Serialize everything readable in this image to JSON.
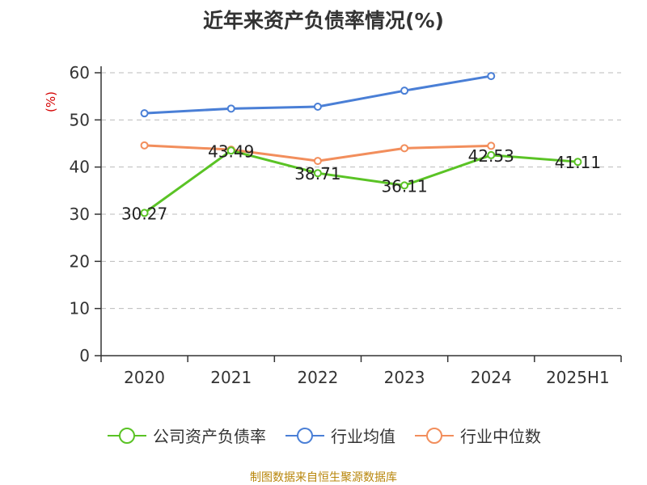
{
  "chart_data": {
    "type": "line",
    "title": "近年来资产负债率情况(%)",
    "ylabel": "(%)",
    "xlabel": "",
    "categories": [
      "2020",
      "2021",
      "2022",
      "2023",
      "2024",
      "2025H1"
    ],
    "ylim": [
      0,
      60
    ],
    "yticks": [
      0,
      10,
      20,
      30,
      40,
      50,
      60
    ],
    "grid": true,
    "legend_position": "bottom",
    "series": [
      {
        "name": "公司资产负债率",
        "color": "#5ac325",
        "values": [
          30.27,
          43.49,
          38.71,
          36.11,
          42.53,
          41.11
        ],
        "labels": [
          "30.27",
          "43.49",
          "38.71",
          "36.11",
          "42.53",
          "41.11"
        ]
      },
      {
        "name": "行业均值",
        "color": "#4a7fd6",
        "values": [
          51.4,
          52.4,
          52.8,
          56.2,
          59.3,
          null
        ]
      },
      {
        "name": "行业中位数",
        "color": "#f28e5c",
        "values": [
          44.6,
          43.7,
          41.3,
          44.0,
          44.5,
          null
        ]
      }
    ]
  },
  "source": "制图数据来自恒生聚源数据库"
}
